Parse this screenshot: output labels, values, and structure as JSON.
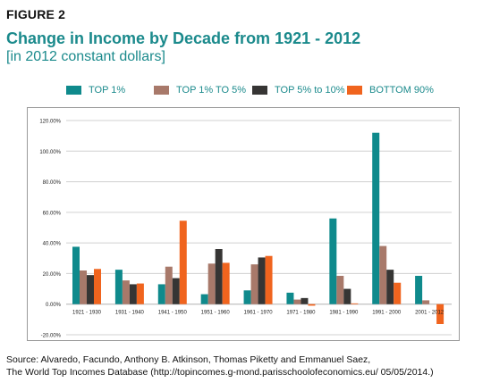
{
  "figure_label": "FIGURE 2",
  "title": "Change in Income by Decade from 1921 - 2012",
  "subtitle": "[in 2012 constant dollars]",
  "source_line1": "Source:  Alvaredo, Facundo, Anthony B. Atkinson, Thomas Piketty and Emmanuel Saez,",
  "source_line2": "The World Top Incomes Database (http://topincomes.g-mond.parisschoolofeconomics.eu/ 05/05/2014.)",
  "colors": {
    "title": "#1b8a8c",
    "legend_text": "#1b8a8c",
    "gridline": "#d0d0d0",
    "axis_text": "#222222"
  },
  "chart_data": {
    "type": "bar",
    "categories": [
      "1921 - 1930",
      "1931 - 1940",
      "1941 - 1950",
      "1951 - 1960",
      "1961 - 1970",
      "1971 - 1980",
      "1981 - 1990",
      "1991 - 2000",
      "2001 - 2012"
    ],
    "series": [
      {
        "name": "TOP 1%",
        "color": "#0f8a8c",
        "values": [
          37.5,
          22.5,
          13,
          6.5,
          9,
          7.5,
          56,
          112,
          18.5
        ]
      },
      {
        "name": "TOP 1% TO 5%",
        "color": "#a8796a",
        "values": [
          22,
          15.5,
          24.5,
          26.5,
          26,
          3,
          18.5,
          38,
          2.5
        ]
      },
      {
        "name": "TOP 5% to 10%",
        "color": "#363534",
        "values": [
          19,
          13,
          17,
          36,
          30.5,
          4,
          10,
          22.5,
          0
        ]
      },
      {
        "name": "BOTTOM 90%",
        "color": "#f0641e",
        "values": [
          23,
          13.5,
          54.5,
          27,
          31.5,
          -1,
          0.5,
          14,
          -13
        ]
      }
    ],
    "yticks": [
      "120.00%",
      "100.00%",
      "80.00%",
      "60.00%",
      "40.00%",
      "20.00%",
      "0.00%",
      "-20.00%"
    ],
    "ylim": [
      -20,
      120
    ],
    "legend": "top",
    "grid": true
  }
}
